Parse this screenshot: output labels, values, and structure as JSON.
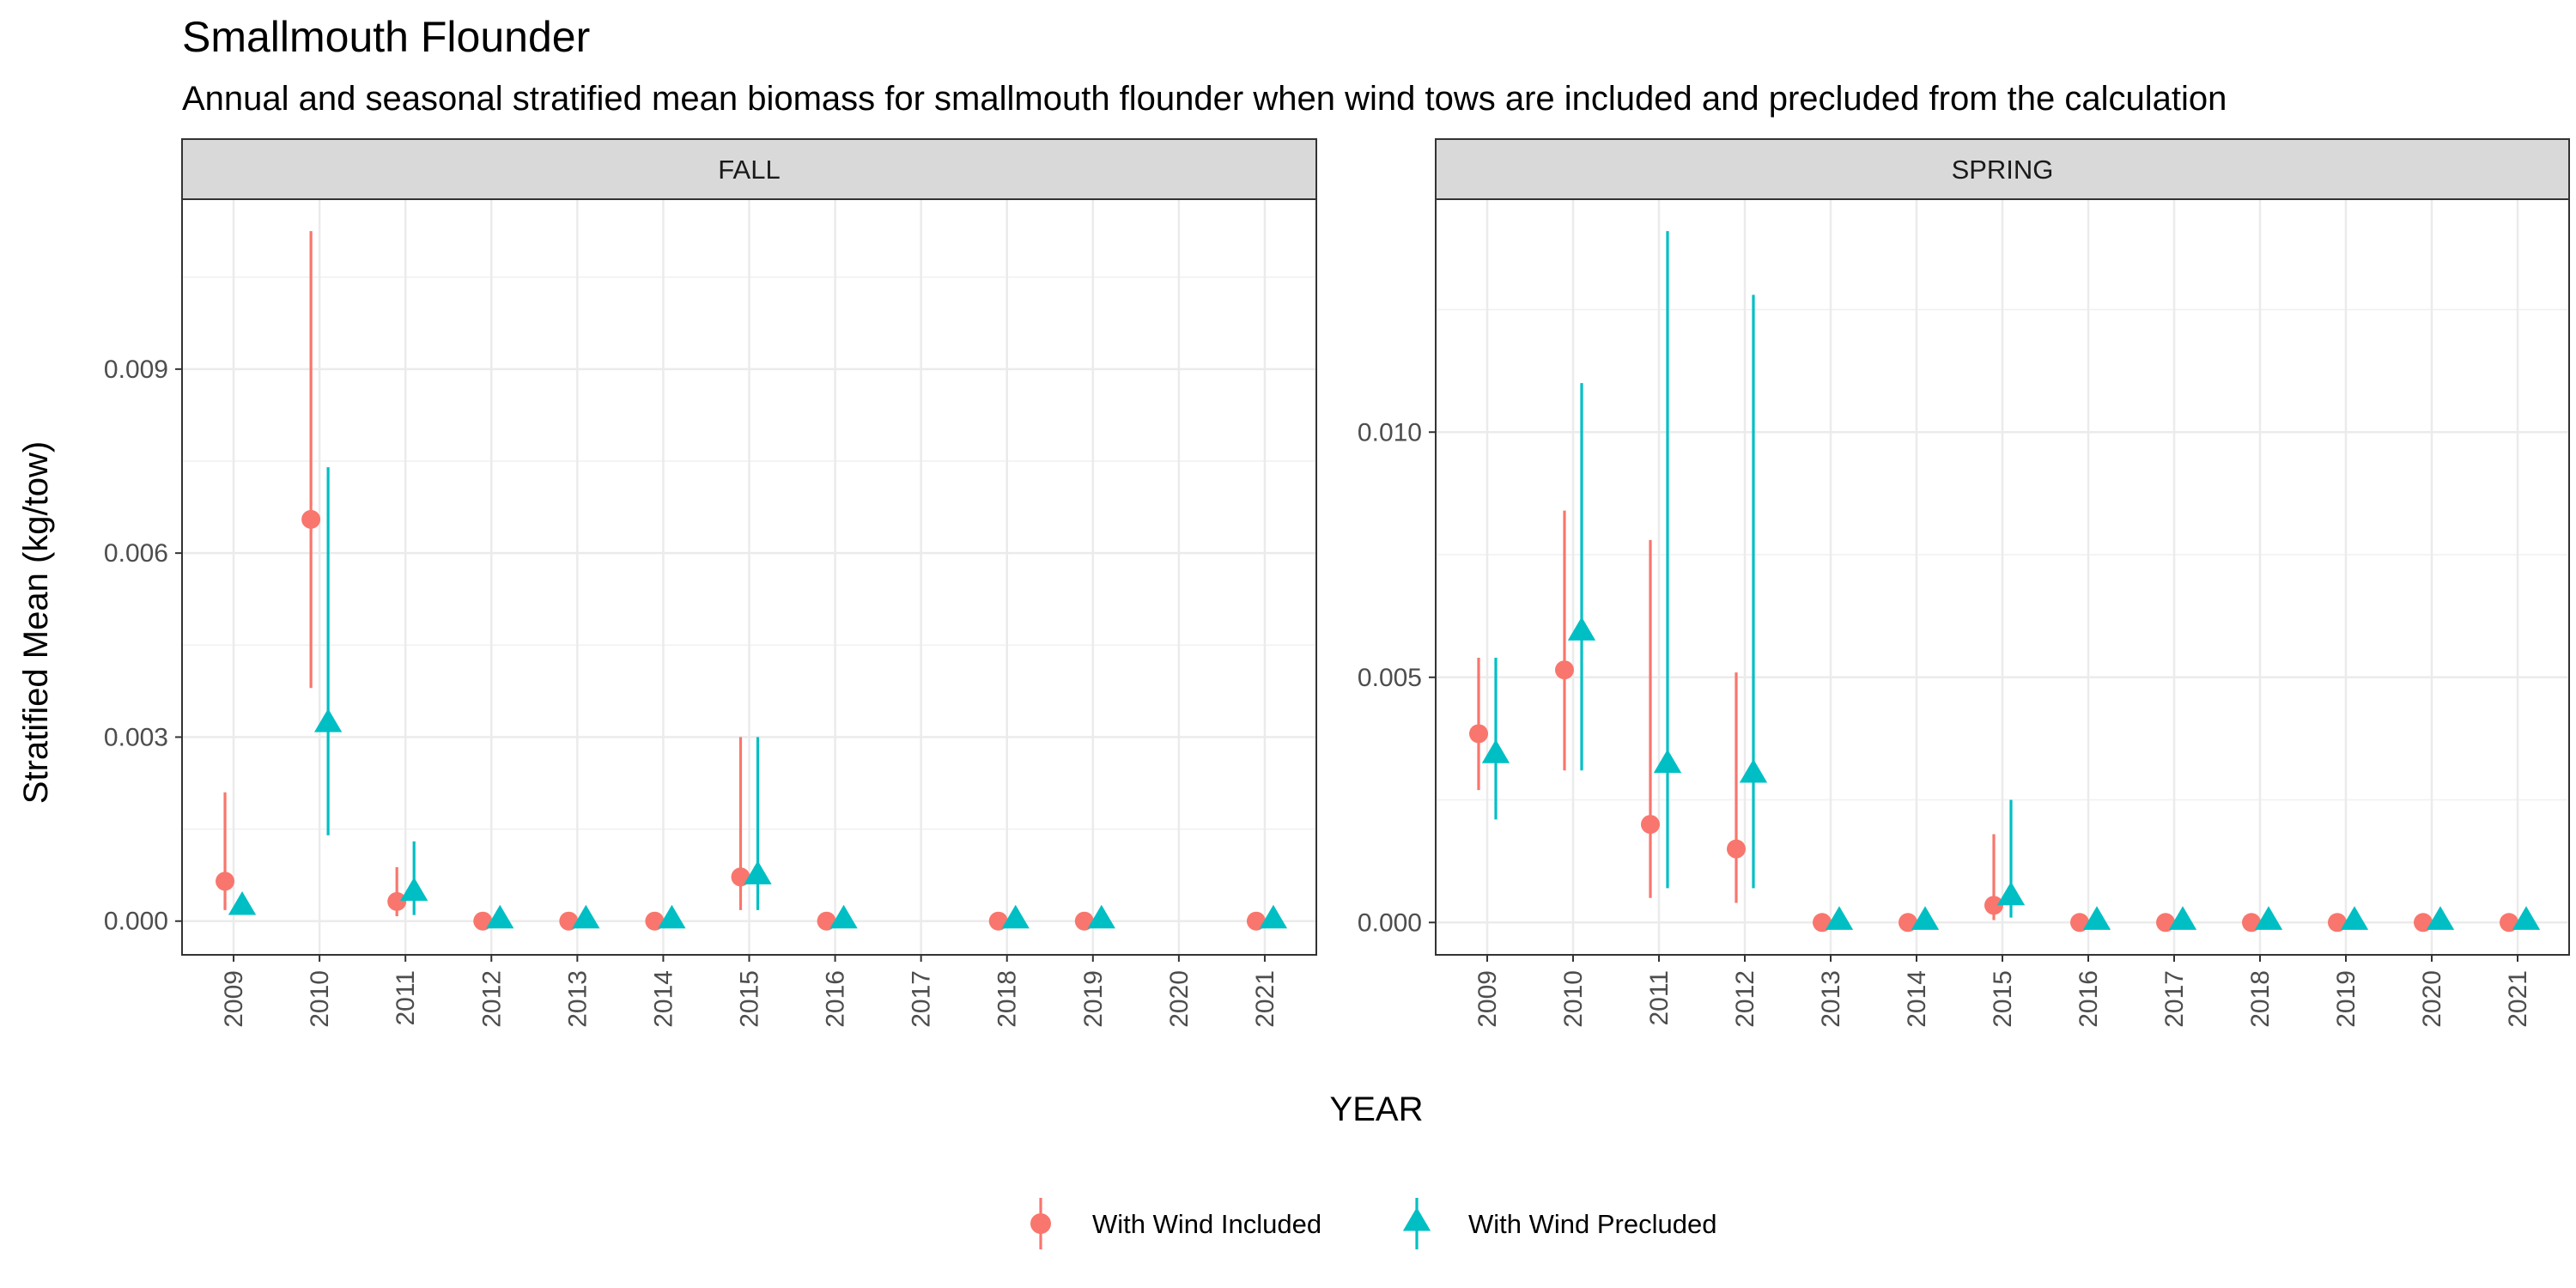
{
  "colors": {
    "included": "#F8766D",
    "precluded": "#00BFC4"
  },
  "chart_data": {
    "type": "scatter",
    "title": "Smallmouth Flounder",
    "subtitle": "Annual and seasonal stratified mean biomass for smallmouth flounder when wind tows are included and precluded from the calculation",
    "xlabel": "YEAR",
    "ylabel": "Stratified Mean (kg/tow)",
    "legend": {
      "position": "bottom",
      "entries": [
        {
          "key": "included",
          "label": "With Wind Included",
          "shape": "circle"
        },
        {
          "key": "precluded",
          "label": "With Wind Precluded",
          "shape": "triangle"
        }
      ]
    },
    "grid": true,
    "panels": [
      {
        "name": "FALL",
        "years": [
          "2009",
          "2010",
          "2011",
          "2012",
          "2013",
          "2014",
          "2015",
          "2016",
          "2017",
          "2018",
          "2019",
          "2020",
          "2021"
        ],
        "ylim": [
          -0.00055,
          0.01177
        ],
        "yticks": [
          0,
          0.003,
          0.006,
          0.009
        ],
        "ytick_labels": [
          "0.000",
          "0.003",
          "0.006",
          "0.009"
        ],
        "series": [
          {
            "key": "included",
            "points": [
              {
                "year": "2009",
                "y": 0.00065,
                "lo": 0.00018,
                "hi": 0.0021
              },
              {
                "year": "2010",
                "y": 0.00655,
                "lo": 0.0038,
                "hi": 0.01125
              },
              {
                "year": "2011",
                "y": 0.00032,
                "lo": 8e-05,
                "hi": 0.00088
              },
              {
                "year": "2012",
                "y": 0.0,
                "lo": 0.0,
                "hi": 0.0
              },
              {
                "year": "2013",
                "y": 0.0,
                "lo": 0.0,
                "hi": 0.0
              },
              {
                "year": "2014",
                "y": 0.0,
                "lo": 0.0,
                "hi": 0.0
              },
              {
                "year": "2015",
                "y": 0.00072,
                "lo": 0.00018,
                "hi": 0.003
              },
              {
                "year": "2016",
                "y": 0.0,
                "lo": 0.0,
                "hi": 0.0
              },
              {
                "year": "2018",
                "y": 0.0,
                "lo": 0.0,
                "hi": 0.0
              },
              {
                "year": "2019",
                "y": 0.0,
                "lo": 0.0,
                "hi": 0.0
              },
              {
                "year": "2021",
                "y": 0.0,
                "lo": 0.0,
                "hi": 0.0
              }
            ]
          },
          {
            "key": "precluded",
            "points": [
              {
                "year": "2009",
                "y": 0.00022,
                "lo": 0.00022,
                "hi": 0.00022
              },
              {
                "year": "2010",
                "y": 0.0032,
                "lo": 0.0014,
                "hi": 0.0074
              },
              {
                "year": "2011",
                "y": 0.00045,
                "lo": 0.0001,
                "hi": 0.0013
              },
              {
                "year": "2012",
                "y": 0.0,
                "lo": 0.0,
                "hi": 0.0
              },
              {
                "year": "2013",
                "y": 0.0,
                "lo": 0.0,
                "hi": 0.0
              },
              {
                "year": "2014",
                "y": 0.0,
                "lo": 0.0,
                "hi": 0.0
              },
              {
                "year": "2015",
                "y": 0.00072,
                "lo": 0.00018,
                "hi": 0.003
              },
              {
                "year": "2016",
                "y": 0.0,
                "lo": 0.0,
                "hi": 0.0
              },
              {
                "year": "2018",
                "y": 0.0,
                "lo": 0.0,
                "hi": 0.0
              },
              {
                "year": "2019",
                "y": 0.0,
                "lo": 0.0,
                "hi": 0.0
              },
              {
                "year": "2021",
                "y": 0.0,
                "lo": 0.0,
                "hi": 0.0
              }
            ]
          }
        ]
      },
      {
        "name": "SPRING",
        "years": [
          "2009",
          "2010",
          "2011",
          "2012",
          "2013",
          "2014",
          "2015",
          "2016",
          "2017",
          "2018",
          "2019",
          "2020",
          "2021"
        ],
        "ylim": [
          -0.00066,
          0.01475
        ],
        "yticks": [
          0,
          0.005,
          0.01
        ],
        "ytick_labels": [
          "0.000",
          "0.005",
          "0.010"
        ],
        "series": [
          {
            "key": "included",
            "points": [
              {
                "year": "2009",
                "y": 0.00385,
                "lo": 0.0027,
                "hi": 0.0054
              },
              {
                "year": "2010",
                "y": 0.00515,
                "lo": 0.0031,
                "hi": 0.0084
              },
              {
                "year": "2011",
                "y": 0.002,
                "lo": 0.0005,
                "hi": 0.0078
              },
              {
                "year": "2012",
                "y": 0.0015,
                "lo": 0.0004,
                "hi": 0.0051
              },
              {
                "year": "2013",
                "y": 0.0,
                "lo": 0.0,
                "hi": 0.0
              },
              {
                "year": "2014",
                "y": 0.0,
                "lo": 0.0,
                "hi": 0.0
              },
              {
                "year": "2015",
                "y": 0.00035,
                "lo": 5e-05,
                "hi": 0.0018
              },
              {
                "year": "2016",
                "y": 0.0,
                "lo": 0.0,
                "hi": 0.0
              },
              {
                "year": "2017",
                "y": 0.0,
                "lo": 0.0,
                "hi": 0.0
              },
              {
                "year": "2018",
                "y": 0.0,
                "lo": 0.0,
                "hi": 0.0
              },
              {
                "year": "2019",
                "y": 0.0,
                "lo": 0.0,
                "hi": 0.0
              },
              {
                "year": "2020",
                "y": 0.0,
                "lo": 0.0,
                "hi": 0.0
              },
              {
                "year": "2021",
                "y": 0.0,
                "lo": 0.0,
                "hi": 0.0
              }
            ]
          },
          {
            "key": "precluded",
            "points": [
              {
                "year": "2009",
                "y": 0.0034,
                "lo": 0.0021,
                "hi": 0.0054
              },
              {
                "year": "2010",
                "y": 0.0059,
                "lo": 0.0031,
                "hi": 0.011
              },
              {
                "year": "2011",
                "y": 0.0032,
                "lo": 0.0007,
                "hi": 0.0141
              },
              {
                "year": "2012",
                "y": 0.003,
                "lo": 0.0007,
                "hi": 0.0128
              },
              {
                "year": "2013",
                "y": 0.0,
                "lo": 0.0,
                "hi": 0.0
              },
              {
                "year": "2014",
                "y": 0.0,
                "lo": 0.0,
                "hi": 0.0
              },
              {
                "year": "2015",
                "y": 0.0005,
                "lo": 0.0001,
                "hi": 0.0025
              },
              {
                "year": "2016",
                "y": 0.0,
                "lo": 0.0,
                "hi": 0.0
              },
              {
                "year": "2017",
                "y": 0.0,
                "lo": 0.0,
                "hi": 0.0
              },
              {
                "year": "2018",
                "y": 0.0,
                "lo": 0.0,
                "hi": 0.0
              },
              {
                "year": "2019",
                "y": 0.0,
                "lo": 0.0,
                "hi": 0.0
              },
              {
                "year": "2020",
                "y": 0.0,
                "lo": 0.0,
                "hi": 0.0
              },
              {
                "year": "2021",
                "y": 0.0,
                "lo": 0.0,
                "hi": 0.0
              }
            ]
          }
        ]
      }
    ]
  }
}
